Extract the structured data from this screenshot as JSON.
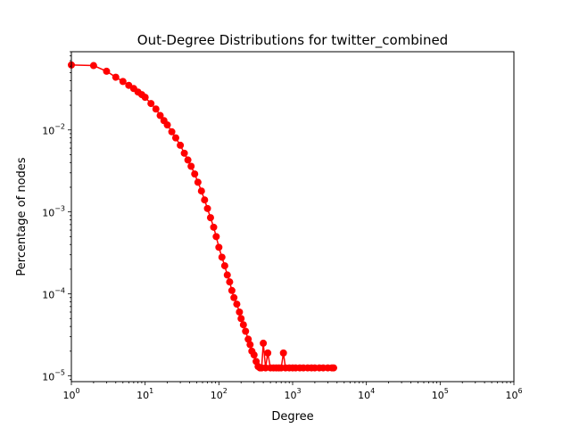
{
  "chart_data": {
    "type": "line",
    "title": "Out-Degree Distributions for twitter_combined",
    "xlabel": "Degree",
    "ylabel": "Percentage of nodes",
    "xscale": "log",
    "yscale": "log",
    "xlim": [
      1,
      1000000
    ],
    "ylim": [
      8.5e-06,
      0.09
    ],
    "grid": false,
    "x_ticks": [
      {
        "value": 1,
        "base": "10",
        "exp": "0"
      },
      {
        "value": 10,
        "base": "10",
        "exp": "1"
      },
      {
        "value": 100,
        "base": "10",
        "exp": "2"
      },
      {
        "value": 1000,
        "base": "10",
        "exp": "3"
      },
      {
        "value": 10000,
        "base": "10",
        "exp": "4"
      },
      {
        "value": 100000,
        "base": "10",
        "exp": "5"
      },
      {
        "value": 1000000,
        "base": "10",
        "exp": "6"
      }
    ],
    "y_ticks": [
      {
        "value": 1e-05,
        "base": "10",
        "exp": "−5"
      },
      {
        "value": 0.0001,
        "base": "10",
        "exp": "−4"
      },
      {
        "value": 0.001,
        "base": "10",
        "exp": "−3"
      },
      {
        "value": 0.01,
        "base": "10",
        "exp": "−2"
      }
    ],
    "series": [
      {
        "color": "#ff0000",
        "marker": "circle",
        "x": [
          1,
          2,
          3,
          4,
          5,
          6,
          7,
          8,
          9,
          10,
          12,
          14,
          16,
          18,
          20,
          23,
          26,
          30,
          34,
          38,
          42,
          47,
          52,
          58,
          64,
          70,
          77,
          85,
          92,
          100,
          110,
          120,
          130,
          140,
          150,
          160,
          175,
          190,
          200,
          215,
          230,
          250,
          265,
          280,
          300,
          320,
          340,
          360,
          380,
          400,
          430,
          460,
          500,
          550,
          600,
          650,
          700,
          750,
          800,
          900,
          1000,
          1100,
          1250,
          1400,
          1600,
          1800,
          2000,
          2300,
          2600,
          3000,
          3400,
          3600
        ],
        "y": [
          0.062,
          0.061,
          0.052,
          0.044,
          0.039,
          0.035,
          0.032,
          0.029,
          0.027,
          0.025,
          0.021,
          0.018,
          0.015,
          0.013,
          0.0115,
          0.0095,
          0.008,
          0.0065,
          0.0052,
          0.0043,
          0.0036,
          0.0029,
          0.0023,
          0.0018,
          0.0014,
          0.0011,
          0.00085,
          0.00065,
          0.0005,
          0.00037,
          0.00028,
          0.00022,
          0.00017,
          0.00014,
          0.00011,
          9e-05,
          7.5e-05,
          6e-05,
          5e-05,
          4.2e-05,
          3.5e-05,
          2.8e-05,
          2.4e-05,
          2e-05,
          1.8e-05,
          1.5e-05,
          1.3e-05,
          1.25e-05,
          1.25e-05,
          2.5e-05,
          1.25e-05,
          1.9e-05,
          1.25e-05,
          1.25e-05,
          1.25e-05,
          1.25e-05,
          1.25e-05,
          1.9e-05,
          1.25e-05,
          1.25e-05,
          1.25e-05,
          1.25e-05,
          1.25e-05,
          1.25e-05,
          1.25e-05,
          1.25e-05,
          1.25e-05,
          1.25e-05,
          1.25e-05,
          1.25e-05,
          1.25e-05,
          1.25e-05
        ]
      }
    ]
  }
}
